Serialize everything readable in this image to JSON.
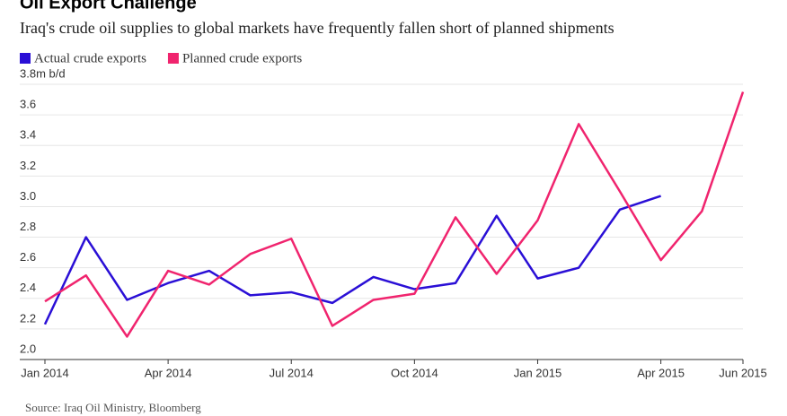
{
  "chart_data": {
    "type": "line",
    "title": "Oil Export Challenge",
    "subtitle": "Iraq's crude oil supplies to global markets have frequently fallen short of planned shipments",
    "source": "Source: Iraq Oil Ministry, Bloomberg",
    "categories": [
      "Jan 2014",
      null,
      null,
      "Apr 2014",
      null,
      null,
      "Jul 2014",
      null,
      null,
      "Oct 2014",
      null,
      null,
      "Jan 2015",
      null,
      null,
      "Apr 2015",
      null,
      "Jun 2015"
    ],
    "series": [
      {
        "name": "Actual crude exports",
        "color": "#2a0fd6",
        "values": [
          2.23,
          2.8,
          2.39,
          2.5,
          2.58,
          2.42,
          2.44,
          2.37,
          2.54,
          2.46,
          2.5,
          2.94,
          2.53,
          2.6,
          2.98,
          3.07,
          null,
          null
        ]
      },
      {
        "name": "Planned crude exports",
        "color": "#f0246e",
        "values": [
          2.38,
          2.55,
          2.15,
          2.58,
          2.49,
          2.69,
          2.79,
          2.22,
          2.39,
          2.43,
          2.93,
          2.56,
          2.91,
          3.54,
          3.1,
          2.65,
          2.97,
          3.75
        ]
      }
    ],
    "ylim": [
      2.0,
      3.8
    ],
    "yticks": [
      {
        "value": 2.0,
        "label": "2.0"
      },
      2.2,
      2.4,
      2.6,
      2.8,
      {
        "value": 3.0,
        "label": "3.0"
      },
      3.2,
      3.4,
      3.6,
      {
        "value": 3.8,
        "label": "3.8m b/d"
      }
    ],
    "grid": true
  }
}
